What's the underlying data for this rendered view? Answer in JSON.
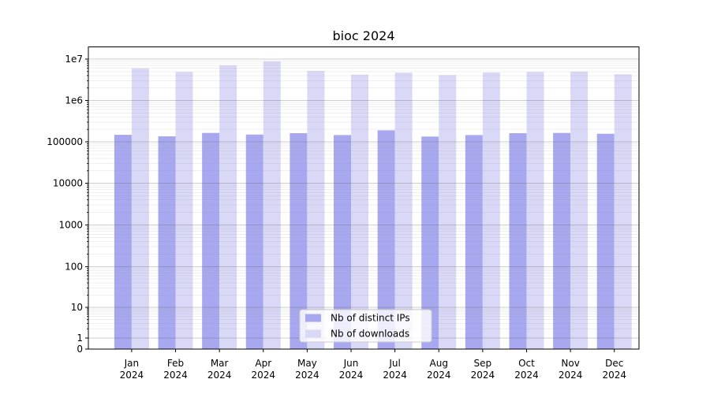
{
  "figure": {
    "title": "bioc 2024",
    "background": "#ffffff"
  },
  "axes": {
    "ytick_labels": [
      "1e7",
      "1e6",
      "100000",
      "10000",
      "1000",
      "100",
      "10",
      "1",
      "0"
    ],
    "months": [
      "Jan",
      "Feb",
      "Mar",
      "Apr",
      "May",
      "Jun",
      "Jul",
      "Aug",
      "Sep",
      "Oct",
      "Nov",
      "Dec"
    ],
    "year": "2024"
  },
  "legend": {
    "items": [
      {
        "label": "Nb of distinct IPs",
        "color": "#a8a8f0"
      },
      {
        "label": "Nb of downloads",
        "color": "#d9d9f7"
      }
    ]
  },
  "colors": {
    "ips_bar": "#a8a8f0",
    "downloads_bar": "#d9d9f7",
    "spine": "#000000"
  },
  "chart_data": {
    "type": "bar",
    "title": "bioc 2024",
    "categories": [
      "Jan 2024",
      "Feb 2024",
      "Mar 2024",
      "Apr 2024",
      "May 2024",
      "Jun 2024",
      "Jul 2024",
      "Aug 2024",
      "Sep 2024",
      "Oct 2024",
      "Nov 2024",
      "Dec 2024"
    ],
    "series": [
      {
        "name": "Nb of distinct IPs",
        "color": "#a8a8f0",
        "values": [
          148000,
          136000,
          164000,
          150000,
          162000,
          146000,
          190000,
          134000,
          146000,
          162000,
          164000,
          157000
        ]
      },
      {
        "name": "Nb of downloads",
        "color": "#d9d9f7",
        "values": [
          6000000,
          4900000,
          7100000,
          8800000,
          5200000,
          4200000,
          4700000,
          4100000,
          4750000,
          4900000,
          5000000,
          4300000
        ]
      }
    ],
    "yscale": "symlog",
    "ylim": [
      0,
      14000000
    ],
    "ytick_values": [
      10000000,
      1000000,
      100000,
      10000,
      1000,
      100,
      10,
      1,
      0
    ],
    "grid": true,
    "legend_position": "lower center"
  }
}
